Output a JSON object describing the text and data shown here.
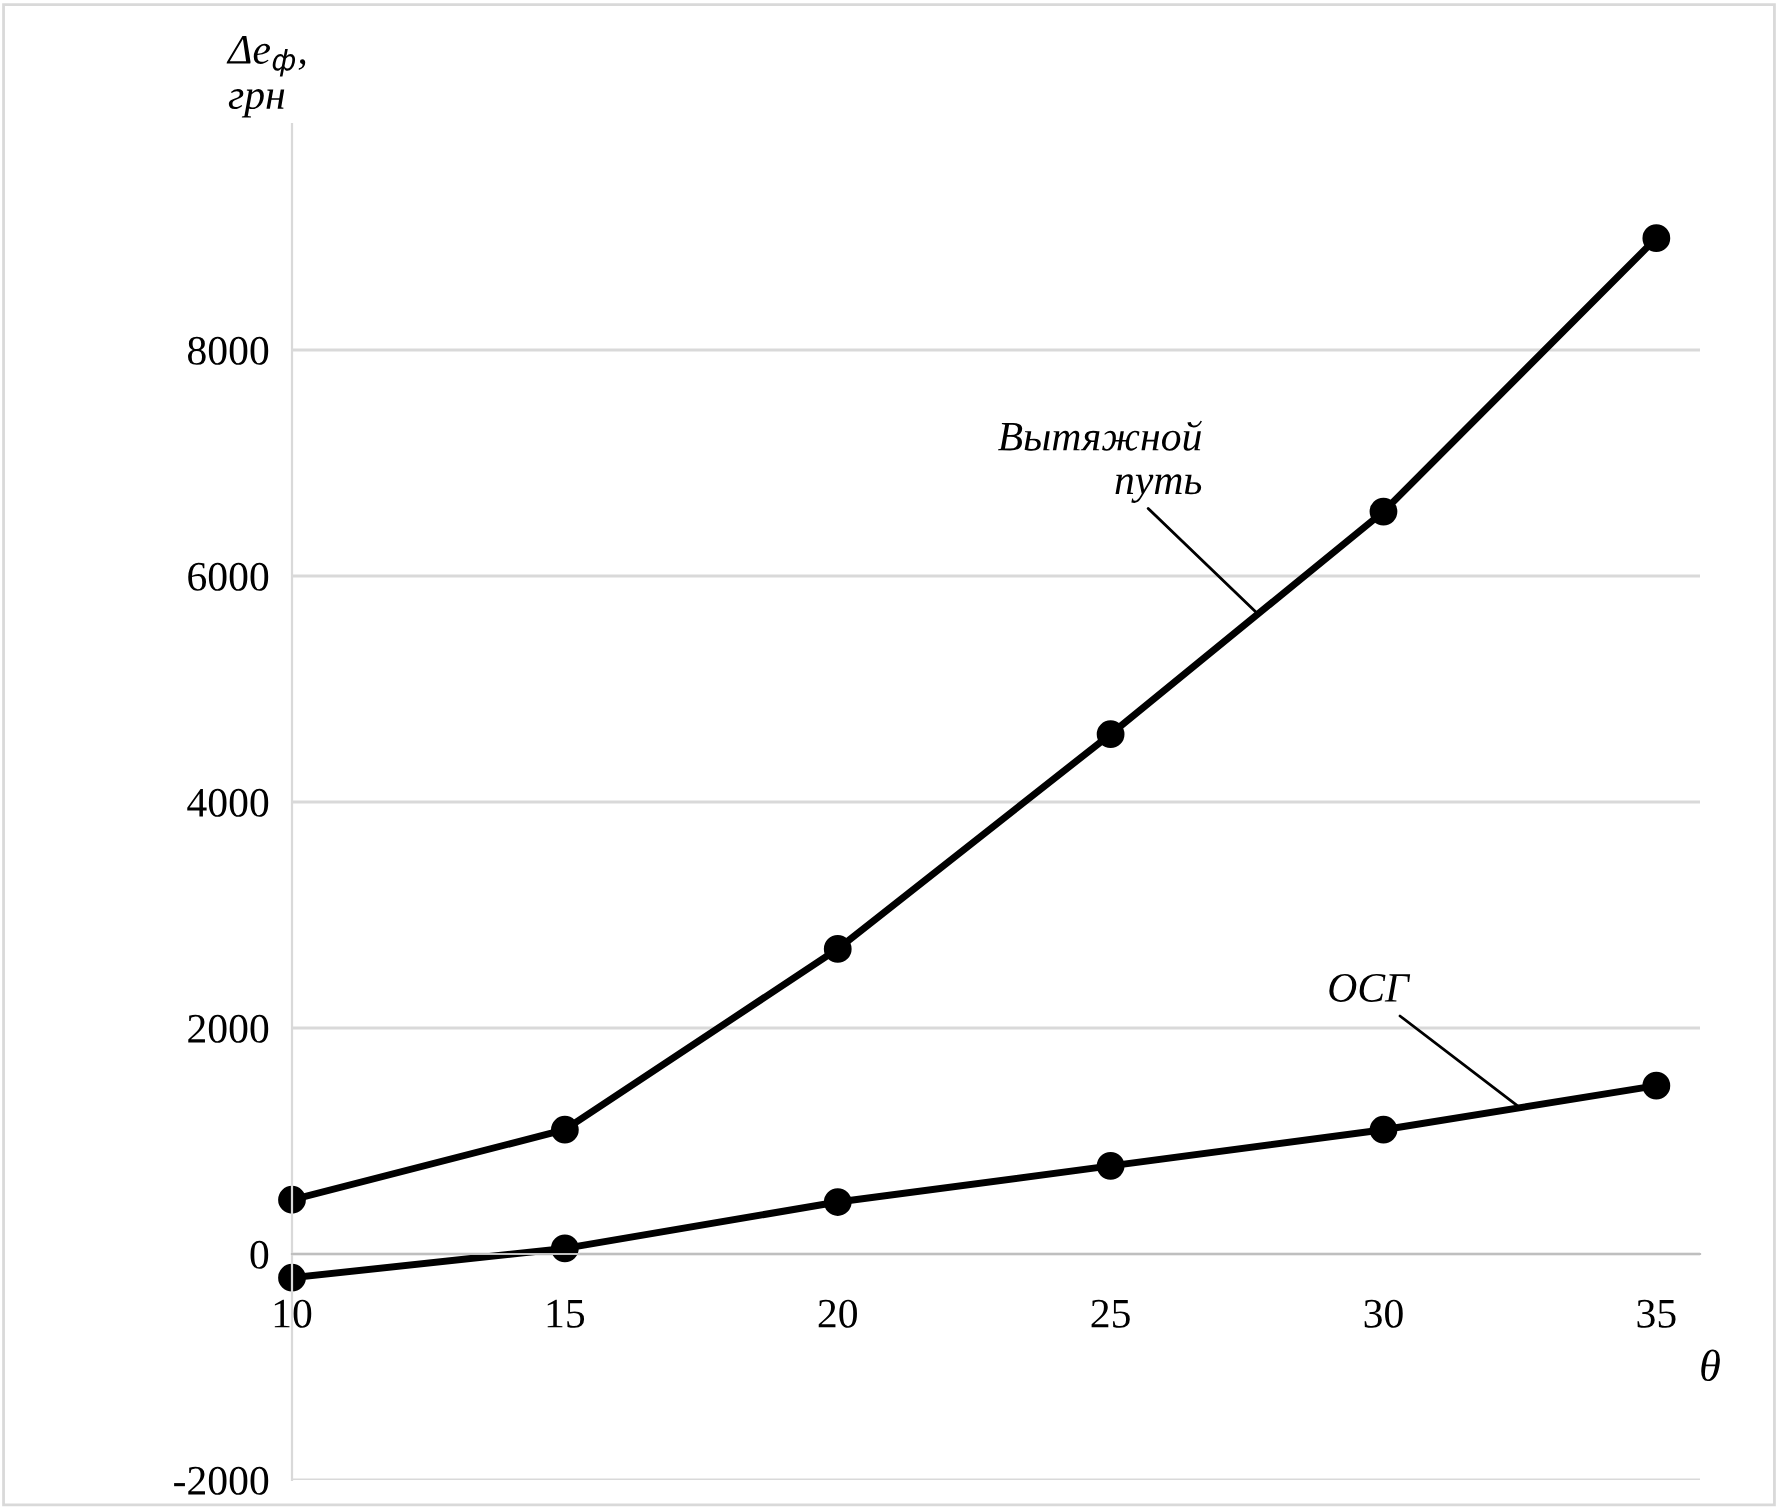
{
  "chart_data": {
    "type": "line",
    "ylabel": "Δe$_{ф}$,\nгрн",
    "xlabel": "θ",
    "x": [
      10,
      15,
      20,
      25,
      30,
      35
    ],
    "series": [
      {
        "name": "Вытяжной\nпуть",
        "color": "#000000",
        "values": [
          480,
          1100,
          2700,
          4600,
          6570,
          8990
        ]
      },
      {
        "name": "ОСГ",
        "color": "#000000",
        "values": [
          -210,
          50,
          460,
          780,
          1100,
          1490
        ]
      }
    ],
    "xlim": [
      10,
      35.8
    ],
    "xticks": [
      10,
      15,
      20,
      25,
      30,
      35
    ],
    "ylim": [
      -2000,
      10000
    ],
    "yticks": [
      -2000,
      0,
      2000,
      4000,
      6000,
      8000
    ],
    "grid": "y",
    "marker": "circle",
    "line_style": "solid"
  }
}
